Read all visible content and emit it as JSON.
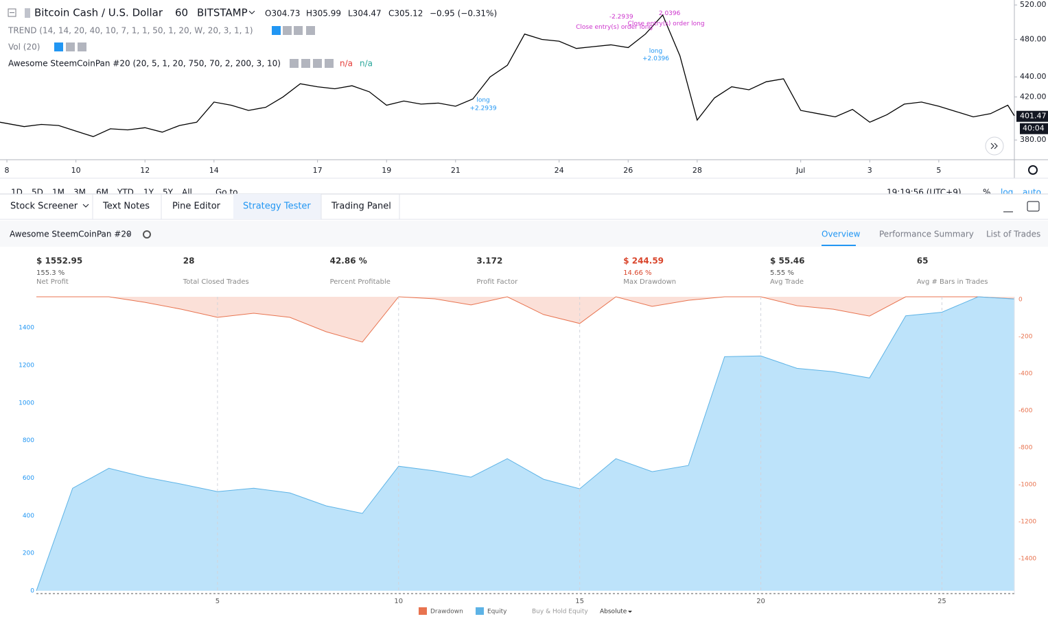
{
  "header": {
    "symbol": "Bitcoin Cash / U.S. Dollar",
    "interval": "60",
    "exchange": "BITSTAMP",
    "ohlc": [
      "O304.73",
      "H305.99",
      "L304.47",
      "C305.12",
      "−0.95 (−0.31%)"
    ],
    "indicators": [
      "TREND (14, 14, 20, 40, 10, 7, 1, 1, 50, 1, 20, W, 20, 3, 1, 1)",
      "Vol (20)",
      "Awesome SteemCoinPan #20 (20, 5, 1, 20, 750, 70, 2, 200, 3, 10)"
    ],
    "indicator_values": [
      "n/a",
      "n/a"
    ]
  },
  "toolbar": {
    "ranges": [
      "1D",
      "5D",
      "1M",
      "3M",
      "6M",
      "YTD",
      "1Y",
      "5Y",
      "All"
    ],
    "goto": "Go to...",
    "clock": "19:19:56 (UTC+9)",
    "scale_options": [
      "%",
      "log",
      "auto"
    ]
  },
  "tabs": [
    "Stock Screener",
    "Text Notes",
    "Pine Editor",
    "Strategy Tester",
    "Trading Panel"
  ],
  "strategy_name": "Awesome SteemCoinPan #20",
  "report_tabs": [
    "Overview",
    "Performance Summary",
    "List of Trades"
  ],
  "stats": [
    {
      "value": "$ 1552.95",
      "sub": "155.3 %",
      "label": "Net Profit"
    },
    {
      "value": "28",
      "label": "Total Closed Trades"
    },
    {
      "value": "42.86 %",
      "label": "Percent Profitable"
    },
    {
      "value": "3.172",
      "label": "Profit Factor"
    },
    {
      "value": "$ 244.59",
      "sub": "14.66 %",
      "label": "Max Drawdown"
    },
    {
      "value": "$ 55.46",
      "sub": "5.55 %",
      "label": "Avg Trade"
    },
    {
      "value": "65",
      "label": "Avg # Bars in Trades"
    }
  ],
  "chart_data": [
    {
      "type": "line",
      "log_scale": true,
      "x": [
        7.8,
        8.5,
        9,
        9.5,
        10,
        10.5,
        11,
        11.5,
        12,
        12.5,
        13,
        13.5,
        14,
        14.5,
        15,
        15.5,
        16,
        16.5,
        17,
        17.5,
        18,
        18.5,
        19,
        19.5,
        20,
        20.5,
        21,
        21.5,
        22,
        22.5,
        23,
        23.5,
        24,
        24.5,
        25,
        25.5,
        26,
        26.5,
        27,
        27.5,
        28,
        28.5,
        29,
        29.5,
        30,
        30.5,
        31,
        31.5,
        32,
        32.5,
        33,
        33.5,
        34,
        34.5,
        35,
        35.5,
        36,
        36.5,
        37,
        37.19
      ],
      "series": [
        {
          "color": "#000000",
          "values": [
            396,
            392,
            394,
            393,
            388,
            383,
            390,
            389,
            391,
            387,
            393,
            396,
            415,
            412,
            407,
            410,
            420,
            433,
            430,
            428,
            431,
            425,
            412,
            416,
            413,
            414,
            411,
            418,
            440,
            452,
            486,
            480,
            478,
            470,
            472,
            474,
            471,
            486,
            508,
            462,
            398,
            419,
            430,
            427,
            435,
            438,
            407,
            404,
            401,
            408,
            396,
            403,
            413,
            415,
            411,
            406,
            401,
            404,
            412,
            402
          ]
        }
      ],
      "xlim": [
        7.8,
        37.19
      ],
      "xticks": [
        8,
        10,
        12,
        14,
        17,
        19,
        21,
        24,
        26,
        28,
        {
          "value": 31,
          "label": "Jul"
        },
        {
          "value": 33,
          "label": "3"
        },
        {
          "value": 35,
          "label": "5"
        }
      ],
      "ylim": [
        363,
        526
      ],
      "yticks": [
        {
          "value": 380,
          "label": "380.00"
        },
        {
          "value": 420,
          "label": "420.00"
        },
        {
          "value": 440,
          "label": "440.00"
        },
        {
          "value": 480,
          "label": "480.00"
        },
        {
          "value": 520,
          "label": "520.00"
        }
      ],
      "last_price": 401.47,
      "countdown": "40:04",
      "annotations": [
        {
          "text": "long",
          "x": 21.8,
          "y": 417,
          "color": "#2196f3"
        },
        {
          "text": "+2.2939",
          "x": 21.8,
          "y": 409,
          "color": "#2196f3"
        },
        {
          "text": "-2.2939",
          "x": 25.8,
          "y": 506,
          "color": "#cc33cc"
        },
        {
          "text": "Close entry(s) order long",
          "x": 25.6,
          "y": 494,
          "color": "#cc33cc"
        },
        {
          "text": "2.0396",
          "x": 27.2,
          "y": 510,
          "color": "#cc33cc"
        },
        {
          "text": "Close entry(s) order long",
          "x": 27.1,
          "y": 498,
          "color": "#cc33cc"
        },
        {
          "text": "long",
          "x": 26.8,
          "y": 467,
          "color": "#2196f3"
        },
        {
          "text": "+2.0396",
          "x": 26.8,
          "y": 459,
          "color": "#2196f3"
        }
      ]
    },
    {
      "type": "area",
      "x": [
        0,
        1,
        2,
        3,
        4,
        5,
        6,
        7,
        8,
        9,
        10,
        11,
        12,
        13,
        14,
        15,
        16,
        17,
        18,
        19,
        20,
        21,
        22,
        23,
        24,
        25,
        26,
        27
      ],
      "series": [
        {
          "name": "Drawdown",
          "color": "#e8734f",
          "fill": "#fbe0d8",
          "axis": "y2",
          "values": [
            0,
            0,
            0,
            -30,
            -67,
            -111,
            -89,
            -111,
            -189,
            -245,
            0,
            -11,
            -44,
            0,
            -96,
            -144,
            0,
            -52,
            -19,
            0,
            0,
            -48,
            -67,
            -104,
            0,
            0,
            0,
            -11
          ]
        },
        {
          "name": "Equity",
          "color": "#5db3e6",
          "fill": "#bde3fa",
          "values": [
            0,
            546,
            652,
            605,
            568,
            528,
            546,
            521,
            452,
            412,
            663,
            638,
            605,
            703,
            594,
            543,
            703,
            634,
            667,
            1246,
            1250,
            1184,
            1166,
            1133,
            1464,
            1483,
            1565,
            1553
          ]
        }
      ],
      "extra_legend": "Buy & Hold Equity",
      "mode": "Absolute",
      "xlim": [
        0,
        27
      ],
      "xticks": [
        5,
        10,
        15,
        20,
        25
      ],
      "ylim": [
        -15,
        1565
      ],
      "yticks": [
        0,
        200,
        400,
        600,
        800,
        1000,
        1200,
        1400
      ],
      "y2lim": [
        -1604,
        0
      ],
      "y2ticks": [
        0,
        -200,
        -400,
        -600,
        -800,
        -1000,
        -1200,
        -1400
      ],
      "grid": true
    }
  ]
}
